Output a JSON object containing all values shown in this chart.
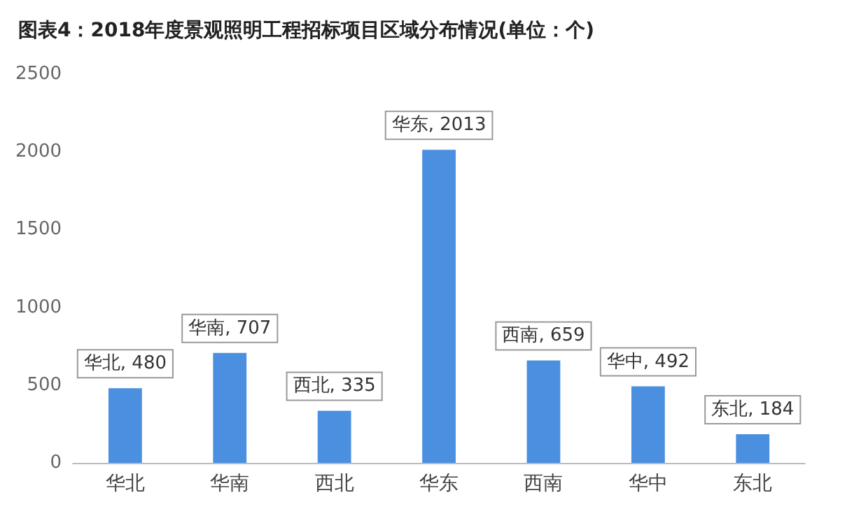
{
  "chart_data": {
    "type": "bar",
    "title": "图表4：2018年度景观照明工程招标项目区域分布情况(单位：个)",
    "categories": [
      "华北",
      "华南",
      "西北",
      "华东",
      "西南",
      "华中",
      "东北"
    ],
    "values": [
      480,
      707,
      335,
      2013,
      659,
      492,
      184
    ],
    "value_labels": [
      "华北, 480",
      "华南, 707",
      "西北, 335",
      "华东, 2013",
      "西南, 659",
      "华中, 492",
      "东北, 184"
    ],
    "color": "#4a8fe0",
    "ylim": [
      0,
      2500
    ],
    "yticks": [
      0,
      500,
      1000,
      1500,
      2000,
      2500
    ],
    "grid": false
  }
}
